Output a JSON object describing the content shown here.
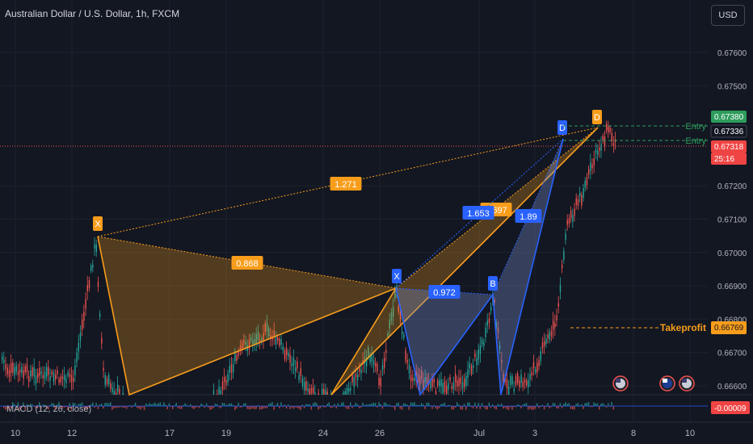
{
  "header": {
    "title": "Australian Dollar / U.S. Dollar, 1h, FXCM",
    "currency_button": "USD"
  },
  "indicator": {
    "label": "MACD (12, 26, close)",
    "value": "-0.00009"
  },
  "colors": {
    "background": "#131722",
    "grid": "#1e222d",
    "up_candle": "#26a69a",
    "down_candle": "#ef5350",
    "orange": "#f89d1b",
    "blue": "#2962ff",
    "green_label": "#2e9c5c",
    "red_label": "#ef4444"
  },
  "chart_data": {
    "type": "candlestick",
    "symbol": "AUDUSD",
    "timeframe": "1h",
    "y_ticks": [
      "0.67600",
      "0.67500",
      "0.67200",
      "0.67100",
      "0.67000",
      "0.66900",
      "0.66800",
      "0.66700",
      "0.66600"
    ],
    "x_ticks": [
      "10",
      "12",
      "17",
      "19",
      "24",
      "26",
      "Jul",
      "3",
      "8",
      "10"
    ],
    "ylim": [
      0.6659,
      0.6769
    ],
    "price_labels": [
      {
        "text": "0.67380",
        "kind": "green"
      },
      {
        "text": "0.67336",
        "kind": "dark"
      },
      {
        "text": "0.67318",
        "kind": "red"
      },
      {
        "text": "25:16",
        "kind": "red"
      },
      {
        "text": "0.66769",
        "kind": "orange"
      }
    ],
    "lines": [
      {
        "label": "Entry",
        "value": 0.6738
      },
      {
        "label": "Entry",
        "value": 0.67336
      },
      {
        "label": "Takeprofit",
        "value": 0.66769
      },
      {
        "label": "",
        "value": 0.67318
      }
    ],
    "patterns": [
      {
        "color": "orange",
        "points": [
          {
            "label": "X",
            "value": 0.6705
          },
          {
            "label": "",
            "value": 0.6659
          },
          {
            "label": "",
            "value": 0.66885
          },
          {
            "label": "",
            "value": 0.6659
          },
          {
            "label": "D",
            "value": 0.6736
          }
        ],
        "ratios": [
          "0.868",
          "1.271",
          "1.697"
        ]
      },
      {
        "color": "blue",
        "points": [
          {
            "label": "X",
            "value": 0.66885
          },
          {
            "label": "",
            "value": 0.6659
          },
          {
            "label": "B",
            "value": 0.66865
          },
          {
            "label": "",
            "value": 0.6659
          },
          {
            "label": "D",
            "value": 0.6734
          }
        ],
        "ratios": [
          "0.972",
          "1.653",
          "1.89"
        ]
      }
    ]
  }
}
